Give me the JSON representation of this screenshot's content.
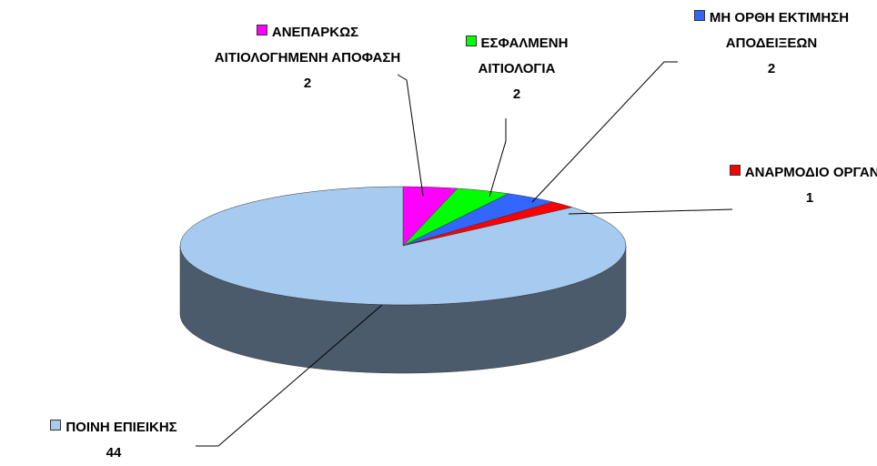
{
  "chart_data": {
    "type": "pie",
    "categories": [
      "ΑΝΕΠΑΡΚΩΣ ΑΙΤΙΟΛΟΓΗΜΕΝΗ ΑΠΟΦΑΣΗ",
      "ΕΣΦΑΛΜΕΝΗ ΑΙΤΙΟΛΟΓΙΑ",
      "ΜΗ ΟΡΘΗ ΕΚΤΙΜΗΣΗ ΑΠΟΔΕΙΞΕΩΝ",
      "ΑΝΑΡΜΟΔΙΟ ΟΡΓΑΝΟ",
      "ΠΟΙΝΗ ΕΠΙΕΙΚΗΣ"
    ],
    "values": [
      2,
      2,
      2,
      1,
      44
    ],
    "colors": [
      "#ff00ff",
      "#00ff00",
      "#3366ff",
      "#ff0000",
      "#a6caf0"
    ]
  }
}
